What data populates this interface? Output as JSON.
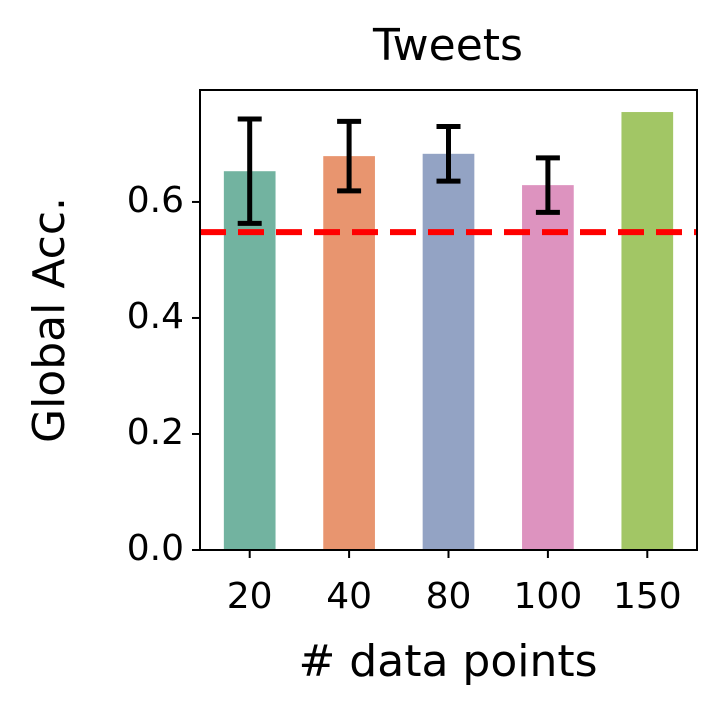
{
  "chart_data": {
    "type": "bar",
    "title": "Tweets",
    "x_label": "# data points",
    "y_label": "Global Acc.",
    "categories": [
      "20",
      "40",
      "80",
      "100",
      "150"
    ],
    "values": [
      0.653,
      0.679,
      0.683,
      0.629,
      0.755
    ],
    "errors": [
      0.09,
      0.06,
      0.047,
      0.047,
      null
    ],
    "colors": [
      "#72b3a0",
      "#e8956f",
      "#93a3c4",
      "#dd93bf",
      "#a2c665"
    ],
    "baseline": 0.548,
    "baseline_color": "#ff0000",
    "ylim": [
      0,
      0.793
    ],
    "yticks": [
      {
        "value": 0,
        "label": "0.0"
      },
      0.2,
      0.4,
      0.6
    ],
    "grid": false
  }
}
